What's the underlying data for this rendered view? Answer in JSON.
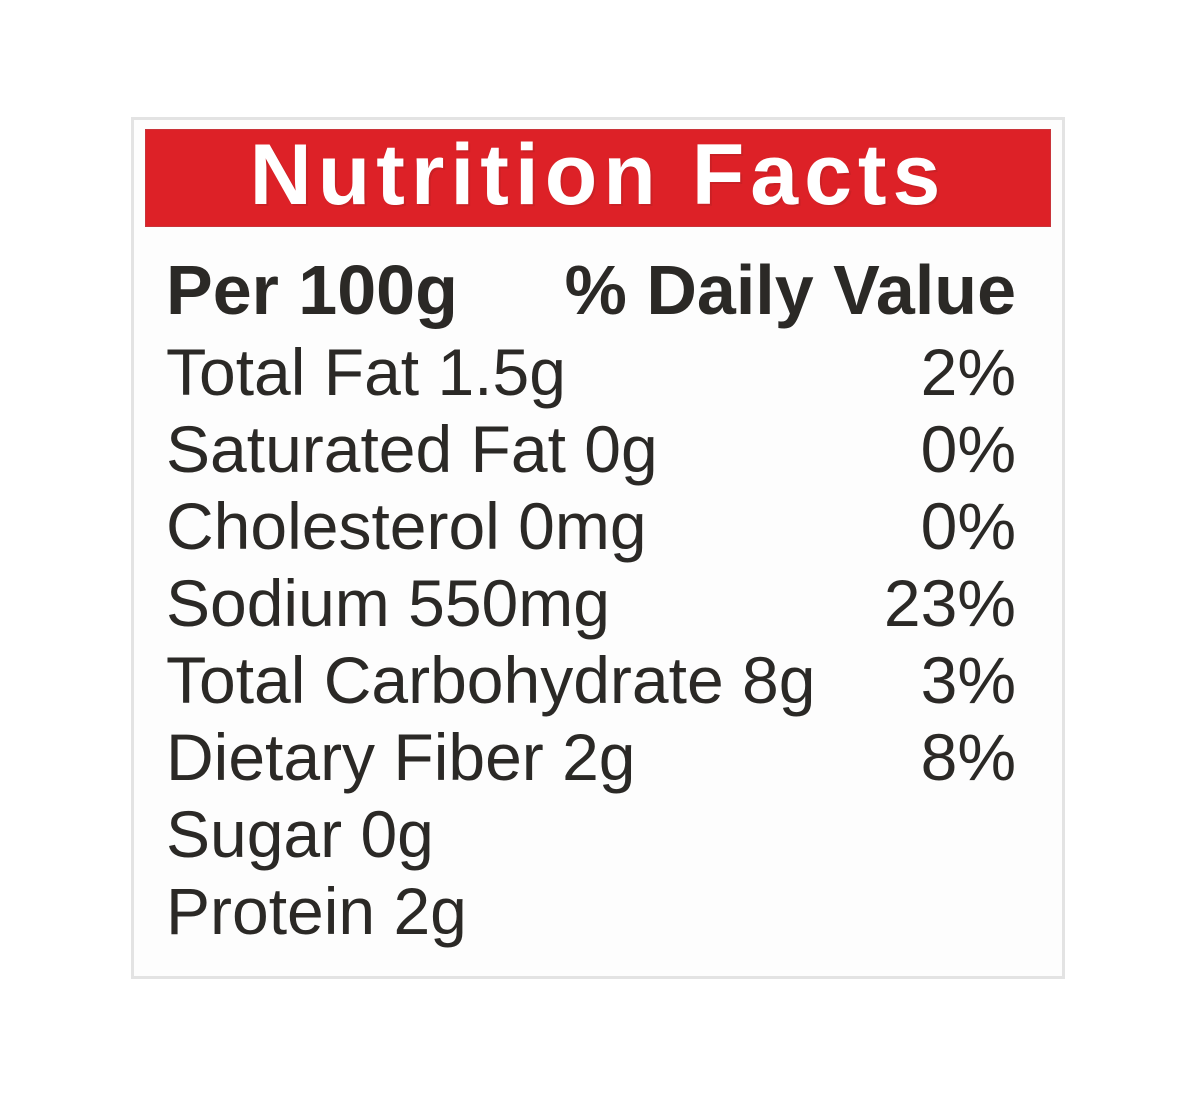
{
  "label": {
    "title": "Nutrition Facts",
    "header": {
      "serving": "Per 100g",
      "dv_heading": "% Daily Value"
    },
    "rows": [
      {
        "name": "Total Fat 1.5g",
        "dv": "2%"
      },
      {
        "name": "Saturated Fat 0g",
        "dv": "0%"
      },
      {
        "name": "Cholesterol 0mg",
        "dv": "0%"
      },
      {
        "name": "Sodium 550mg",
        "dv": "23%"
      },
      {
        "name": "Total Carbohydrate 8g",
        "dv": "3%"
      },
      {
        "name": "Dietary Fiber 2g",
        "dv": "8%"
      },
      {
        "name": "Sugar 0g",
        "dv": ""
      },
      {
        "name": "Protein 2g",
        "dv": ""
      }
    ],
    "colors": {
      "header_bg": "#dd2127",
      "header_text": "#ffffff",
      "body_text": "#2b2926",
      "label_border": "#e3e3e3",
      "label_bg": "#fdfdfd"
    }
  }
}
